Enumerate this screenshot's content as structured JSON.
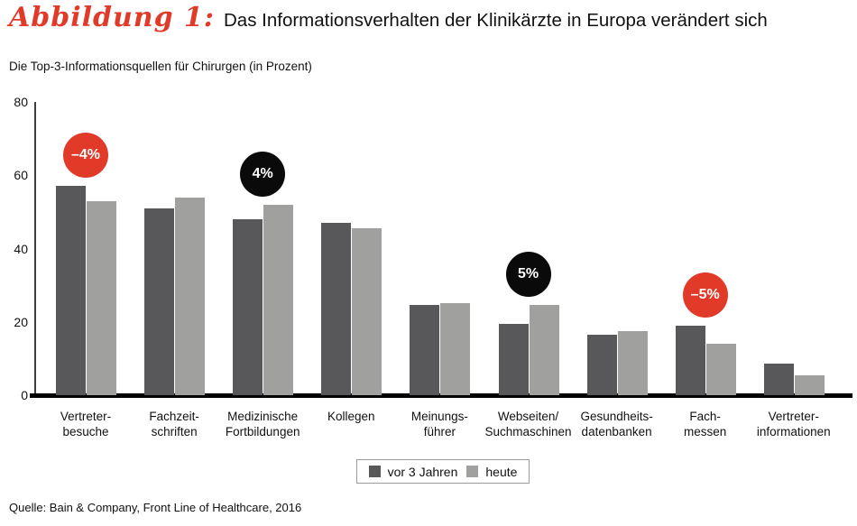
{
  "header": {
    "figure_label": "Abbildung 1:",
    "title": "Das Informationsverhalten der Klinikärzte in Europa verändert sich",
    "subtitle": "Die Top-3-Informationsquellen für Chirurgen (in Prozent)"
  },
  "colors": {
    "accent_red": "#e23a28",
    "bar_dark": "#58585a",
    "bar_light": "#a0a09f",
    "annotation_black": "#0a0a0a"
  },
  "chart_data": {
    "type": "bar",
    "title": "Die Top-3-Informationsquellen für Chirurgen (in Prozent)",
    "categories": [
      "Vertreterbesuche",
      "Fachzeitschriften",
      "Medizinische Fortbildungen",
      "Kollegen",
      "Meinungsführer",
      "Webseiten/Suchmaschinen",
      "Gesundheitsdatenbanken",
      "Fachmessen",
      "Vertreterinformationen"
    ],
    "category_label_lines": [
      [
        "Vertreter-",
        "besuche"
      ],
      [
        "Fachzeit-",
        "schriften"
      ],
      [
        "Medizinische",
        "Fortbildungen"
      ],
      [
        "Kollegen"
      ],
      [
        "Meinungs-",
        "führer"
      ],
      [
        "Webseiten/",
        "Suchmaschinen"
      ],
      [
        "Gesundheits-",
        "datenbanken"
      ],
      [
        "Fach-",
        "messen"
      ],
      [
        "Vertreter-",
        "informationen"
      ]
    ],
    "series": [
      {
        "name": "vor 3 Jahren",
        "values": [
          57,
          51,
          48,
          47,
          24.5,
          19.5,
          16.5,
          19,
          8.5
        ]
      },
      {
        "name": "heute",
        "values": [
          53,
          54,
          52,
          45.5,
          25,
          24.5,
          17.5,
          14,
          5.5
        ]
      }
    ],
    "ylabel": "",
    "xlabel": "",
    "ylim": [
      0,
      80
    ],
    "y_ticks": [
      0,
      20,
      40,
      60,
      80
    ],
    "grid": false,
    "legend_position": "bottom",
    "annotations": [
      {
        "category_index": 0,
        "label": "–4%",
        "direction": "decrease"
      },
      {
        "category_index": 2,
        "label": "4%",
        "direction": "increase"
      },
      {
        "category_index": 5,
        "label": "5%",
        "direction": "increase"
      },
      {
        "category_index": 7,
        "label": "–5%",
        "direction": "decrease"
      }
    ]
  },
  "legend": {
    "items": [
      {
        "label": "vor 3 Jahren",
        "swatch": "bar_dark"
      },
      {
        "label": "heute",
        "swatch": "bar_light"
      }
    ]
  },
  "footer": {
    "source": "Quelle: Bain & Company, Front Line of Healthcare, 2016"
  }
}
